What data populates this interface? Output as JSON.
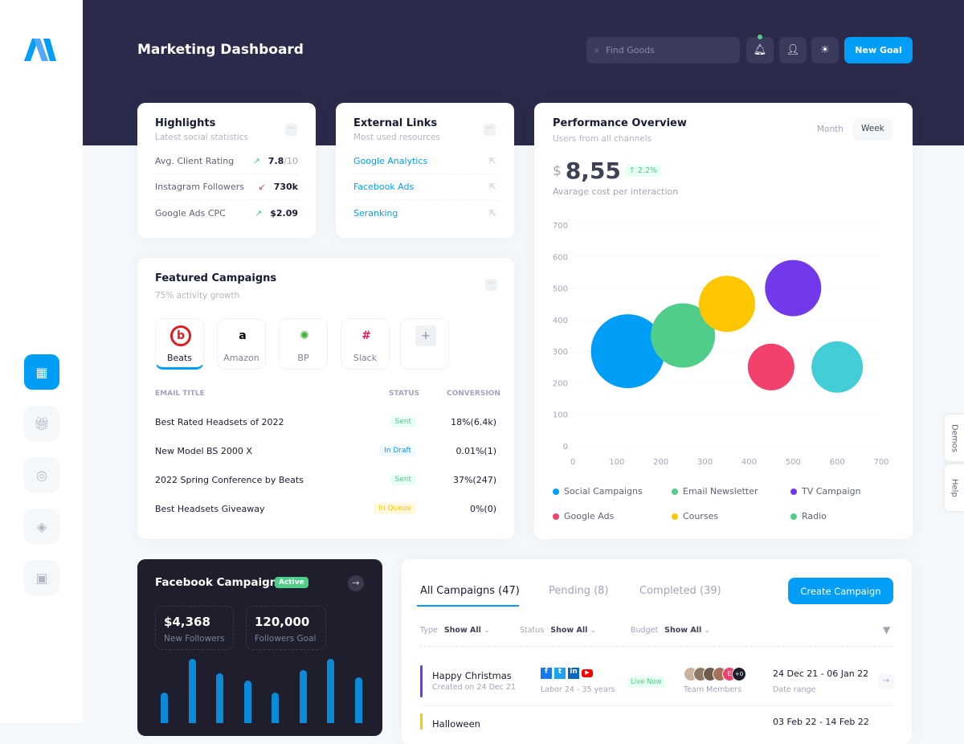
{
  "header": {
    "title": "Marketing Dashboard",
    "search_placeholder": "Find Goods",
    "new_goal": "New Goal"
  },
  "sidebar": {
    "items": [
      "dashboard-icon",
      "gift-icon",
      "lifebuoy-icon",
      "layers-icon",
      "briefcase-icon"
    ],
    "active": 0
  },
  "highlights": {
    "title": "Highlights",
    "subtitle": "Latest social statistics",
    "rows": [
      {
        "label": "Avg. Client Rating",
        "value": "7.8",
        "suffix": "/10",
        "trend": "up"
      },
      {
        "label": "Instagram Followers",
        "value": "730k",
        "suffix": "",
        "trend": "down"
      },
      {
        "label": "Google Ads CPC",
        "value": "$2.09",
        "suffix": "",
        "trend": "up"
      }
    ]
  },
  "external": {
    "title": "External Links",
    "subtitle": "Most used resources",
    "links": [
      "Google Analytics",
      "Facebook Ads",
      "Seranking"
    ]
  },
  "featured": {
    "title": "Featured Campaigns",
    "subtitle": "75% activity growth",
    "brands": [
      "Beats",
      "Amazon",
      "BP",
      "Slack"
    ],
    "columns": [
      "EMAIL TITLE",
      "STATUS",
      "CONVERSION"
    ],
    "rows": [
      {
        "title": "Best Rated Headsets of 2022",
        "status": "Sent",
        "conversion": "18%(6.4k)"
      },
      {
        "title": "New Model BS 2000 X",
        "status": "In Draft",
        "conversion": "0.01%(1)"
      },
      {
        "title": "2022 Spring Conference by Beats",
        "status": "Sent",
        "conversion": "37%(247)"
      },
      {
        "title": "Best Headsets Giveaway",
        "status": "In Queue",
        "conversion": "0%(0)"
      }
    ]
  },
  "performance": {
    "title": "Performance Overview",
    "subtitle": "Users from all channels",
    "tabs": [
      "Month",
      "Week"
    ],
    "active_tab": "Week",
    "currency": "$",
    "value": "8,55",
    "change": "2.2%",
    "caption": "Avarage cost per interaction"
  },
  "chart_data": {
    "type": "scatter",
    "subtype": "bubble",
    "xlim": [
      0,
      700
    ],
    "ylim": [
      0,
      700
    ],
    "xticks": [
      0,
      100,
      200,
      300,
      400,
      500,
      600,
      700
    ],
    "yticks": [
      0,
      100,
      200,
      300,
      400,
      500,
      600,
      700
    ],
    "grid": true,
    "legend_placement": "bottom",
    "legend": [
      {
        "name": "Social Campaigns",
        "color": "#009ef7"
      },
      {
        "name": "Email Newsletter",
        "color": "#50cd89"
      },
      {
        "name": "TV Campaign",
        "color": "#7239ea"
      },
      {
        "name": "Google Ads",
        "color": "#f1416c"
      },
      {
        "name": "Courses",
        "color": "#ffc700"
      },
      {
        "name": "Radio",
        "color": "#50cd89"
      }
    ],
    "points": [
      {
        "x": 125,
        "y": 300,
        "z": 46,
        "color": "#009ef7"
      },
      {
        "x": 250,
        "y": 350,
        "z": 40,
        "color": "#50cd89"
      },
      {
        "x": 350,
        "y": 450,
        "z": 35,
        "color": "#ffc700"
      },
      {
        "x": 500,
        "y": 500,
        "z": 35,
        "color": "#7239ea"
      },
      {
        "x": 450,
        "y": 250,
        "z": 29,
        "color": "#f1416c"
      },
      {
        "x": 600,
        "y": 250,
        "z": 32,
        "color": "#43ced7"
      }
    ]
  },
  "facebook": {
    "title": "Facebook Campaign",
    "badge": "Active",
    "stats": [
      {
        "value": "$4,368",
        "label": "New Followers"
      },
      {
        "value": "120,000",
        "label": "Followers Goal"
      }
    ],
    "bars": [
      22,
      63,
      45,
      36,
      22,
      49,
      63,
      40
    ]
  },
  "campaigns": {
    "tabs": [
      "All Campaigns (47)",
      "Pending (8)",
      "Completed (39)"
    ],
    "create": "Create Campaign",
    "filters": [
      {
        "label": "Type",
        "value": "Show All"
      },
      {
        "label": "Status",
        "value": "Show All"
      },
      {
        "label": "Budget",
        "value": "Show All"
      }
    ],
    "rows": [
      {
        "name": "Happy Christmas",
        "created": "Created on 24 Dec 21",
        "audience": "Labor 24 - 35 years",
        "status": "Live Now",
        "team": "Team Members",
        "dates": "24 Dec 21 - 06 Jan 22",
        "dates_label": "Date range"
      },
      {
        "name": "Halloween",
        "dates": "03 Feb 22 - 14 Feb 22"
      }
    ]
  },
  "side_tags": [
    "Demos",
    "Help"
  ]
}
